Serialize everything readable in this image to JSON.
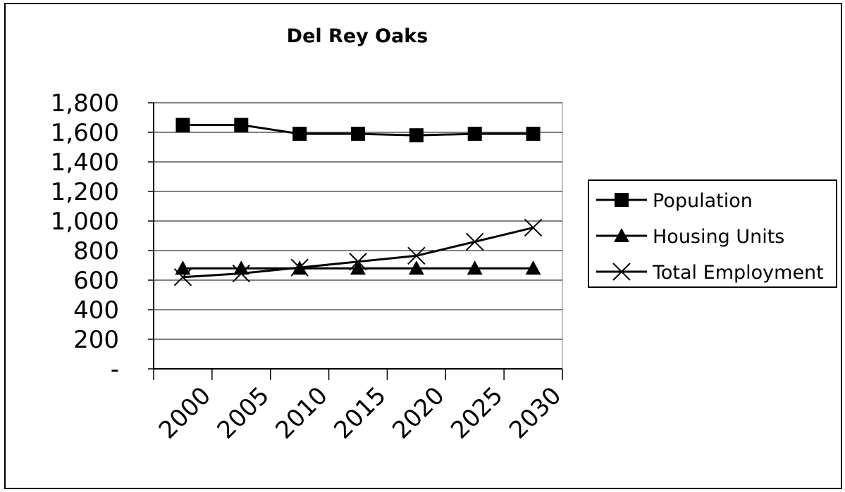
{
  "chart_data": {
    "type": "line",
    "title": "Del Rey Oaks",
    "xlabel": "",
    "ylabel": "",
    "categories": [
      "2000",
      "2005",
      "2010",
      "2015",
      "2020",
      "2025",
      "2030"
    ],
    "ylim": [
      0,
      1800
    ],
    "y_ticks": [
      0,
      200,
      400,
      600,
      800,
      1000,
      1200,
      1400,
      1600,
      1800
    ],
    "y_tick_labels": [
      "-",
      "200",
      "400",
      "600",
      "800",
      "1,000",
      "1,200",
      "1,400",
      "1,600",
      "1,800"
    ],
    "grid": "horizontal",
    "legend_position": "right",
    "series": [
      {
        "name": "Population",
        "marker": "square",
        "color": "#000000",
        "values": [
          1650,
          1650,
          1590,
          1590,
          1580,
          1590,
          1590
        ]
      },
      {
        "name": "Housing Units",
        "marker": "triangle",
        "color": "#000000",
        "values": [
          680,
          680,
          680,
          680,
          680,
          680,
          680
        ]
      },
      {
        "name": "Total Employment",
        "marker": "x",
        "color": "#000000",
        "values": [
          620,
          645,
          685,
          725,
          765,
          860,
          955
        ]
      }
    ]
  }
}
